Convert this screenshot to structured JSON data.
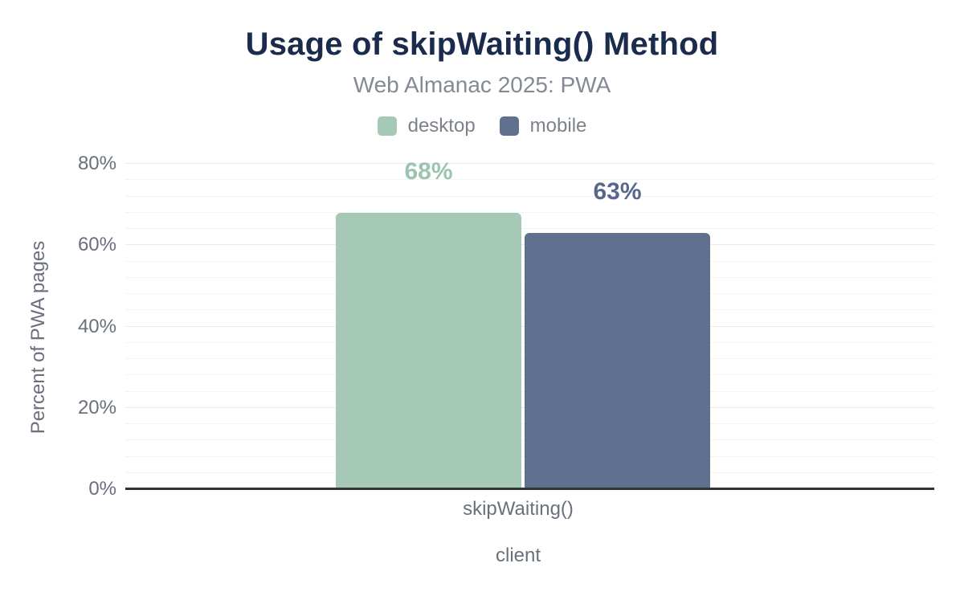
{
  "chart_data": {
    "type": "bar",
    "title": "Usage of skipWaiting() Method",
    "subtitle": "Web Almanac 2025: PWA",
    "xlabel": "client",
    "ylabel": "Percent of PWA pages",
    "categories": [
      "skipWaiting()"
    ],
    "series": [
      {
        "name": "desktop",
        "values": [
          68
        ],
        "data_labels": [
          "68%"
        ],
        "color": "#a6c8b6",
        "label_color": "#9cc3b0"
      },
      {
        "name": "mobile",
        "values": [
          63
        ],
        "data_labels": [
          "63%"
        ],
        "color": "#5f718e",
        "label_color": "#57688a"
      }
    ],
    "ylim": [
      0,
      80
    ],
    "y_ticks": [
      {
        "value": 0,
        "label": "0%"
      },
      {
        "value": 20,
        "label": "20%"
      },
      {
        "value": 40,
        "label": "40%"
      },
      {
        "value": 60,
        "label": "60%"
      },
      {
        "value": 80,
        "label": "80%"
      }
    ],
    "grid": {
      "orientation": "horizontal",
      "minor_step": 4,
      "major_step": 20,
      "minor_color": "#f4f4f4",
      "major_color": "#eaeaea"
    },
    "legend_position": "top"
  },
  "colors": {
    "background": "#ffffff",
    "title_text": "#1a2b4c",
    "subtitle_text": "#848a94",
    "axis_text": "#69707b",
    "legend_text": "#7c828c",
    "baseline": "#333333"
  }
}
